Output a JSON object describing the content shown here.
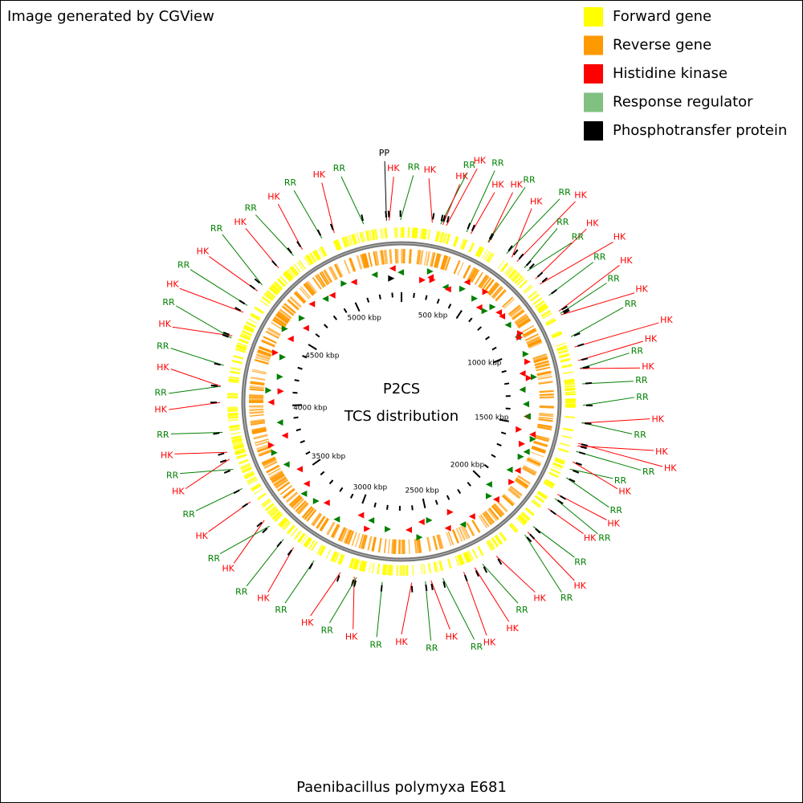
{
  "header": "Image generated by CGView",
  "legend": [
    {
      "label": "Forward gene",
      "color": "#ffff00"
    },
    {
      "label": "Reverse gene",
      "color": "#ff9900"
    },
    {
      "label": "Histidine kinase",
      "color": "#ff0000"
    },
    {
      "label": "Response regulator",
      "color": "#80c080"
    },
    {
      "label": "Phosphotransfer protein",
      "color": "#000000"
    }
  ],
  "title": "P2CS",
  "subtitle": "TCS distribution",
  "organism": "Paenibacillus polymyxa E681",
  "ticks": [
    "500 kbp",
    "1000 kbp",
    "1500 kbp",
    "2000 kbp",
    "2500 kbp",
    "3000 kbp",
    "3500 kbp",
    "4000 kbp",
    "4500 kbp",
    "5000 kbp"
  ],
  "features": [
    "PP",
    "HK",
    "RR",
    "HK",
    "RR",
    "HK",
    "HK",
    "RR",
    "HK",
    "HK",
    "RR",
    "HK",
    "RR",
    "HK",
    "RR",
    "HK",
    "RR",
    "HK",
    "RR",
    "HK",
    "RR",
    "HK",
    "RR",
    "HK",
    "HK",
    "RR",
    "HK",
    "RR",
    "RR",
    "HK",
    "RR",
    "HK",
    "HK",
    "RR",
    "RR",
    "HK",
    "RR",
    "HK",
    "RR",
    "HK",
    "RR",
    "HK",
    "RR",
    "HK",
    "RR",
    "HK",
    "HK",
    "RR",
    "HK",
    "RR",
    "HK",
    "RR",
    "HK",
    "RR",
    "HK",
    "RR",
    "HK",
    "RR",
    "HK",
    "RR",
    "HK",
    "RR",
    "HK",
    "RR",
    "HK",
    "RR",
    "HK",
    "RR",
    "HK",
    "RR",
    "HK",
    "RR",
    "HK",
    "RR",
    "HK",
    "RR",
    "HK",
    "RR",
    "HK",
    "RR",
    "HK",
    "RR"
  ]
}
